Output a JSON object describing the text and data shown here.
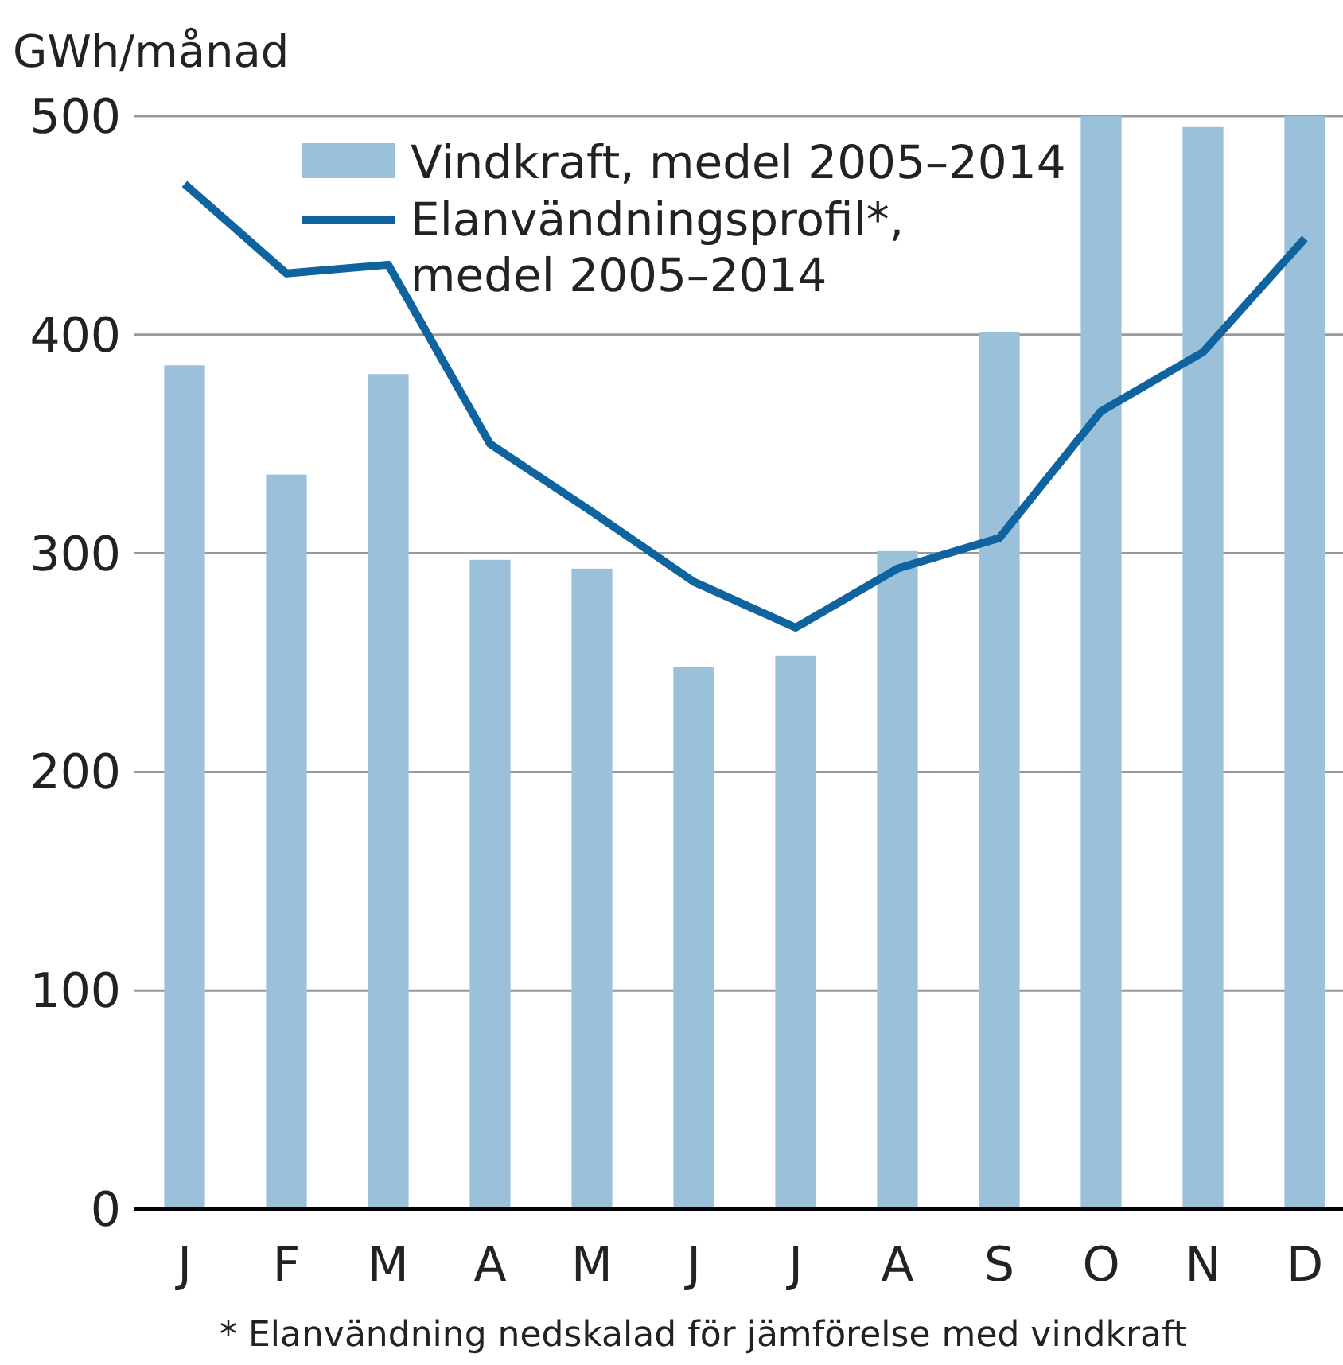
{
  "chart_data": {
    "type": "bar",
    "ylabel": "GWh/månad",
    "categories": [
      "J",
      "F",
      "M",
      "A",
      "M",
      "J",
      "J",
      "A",
      "S",
      "O",
      "N",
      "D"
    ],
    "series": [
      {
        "name": "Vindkraft, medel 2005–2014",
        "color": "#9bc0da",
        "values": [
          386,
          336,
          382,
          297,
          293,
          248,
          253,
          301,
          401,
          500,
          495,
          500
        ]
      },
      {
        "name": "Elanvändningsprofil*,\nmedel 2005–2014",
        "type": "line",
        "color": "#0f64a0",
        "values": [
          469,
          428,
          432,
          350,
          319,
          287,
          266,
          293,
          307,
          365,
          392,
          444
        ]
      }
    ],
    "ylim": [
      0,
      500
    ],
    "yticks": [
      0,
      100,
      200,
      300,
      400,
      500
    ],
    "grid": "y",
    "legend": "top",
    "marker": "none",
    "line_style": "solid",
    "annotations": [
      "* Elanvändning nedskalad för jämförelse med vindkraft"
    ]
  }
}
